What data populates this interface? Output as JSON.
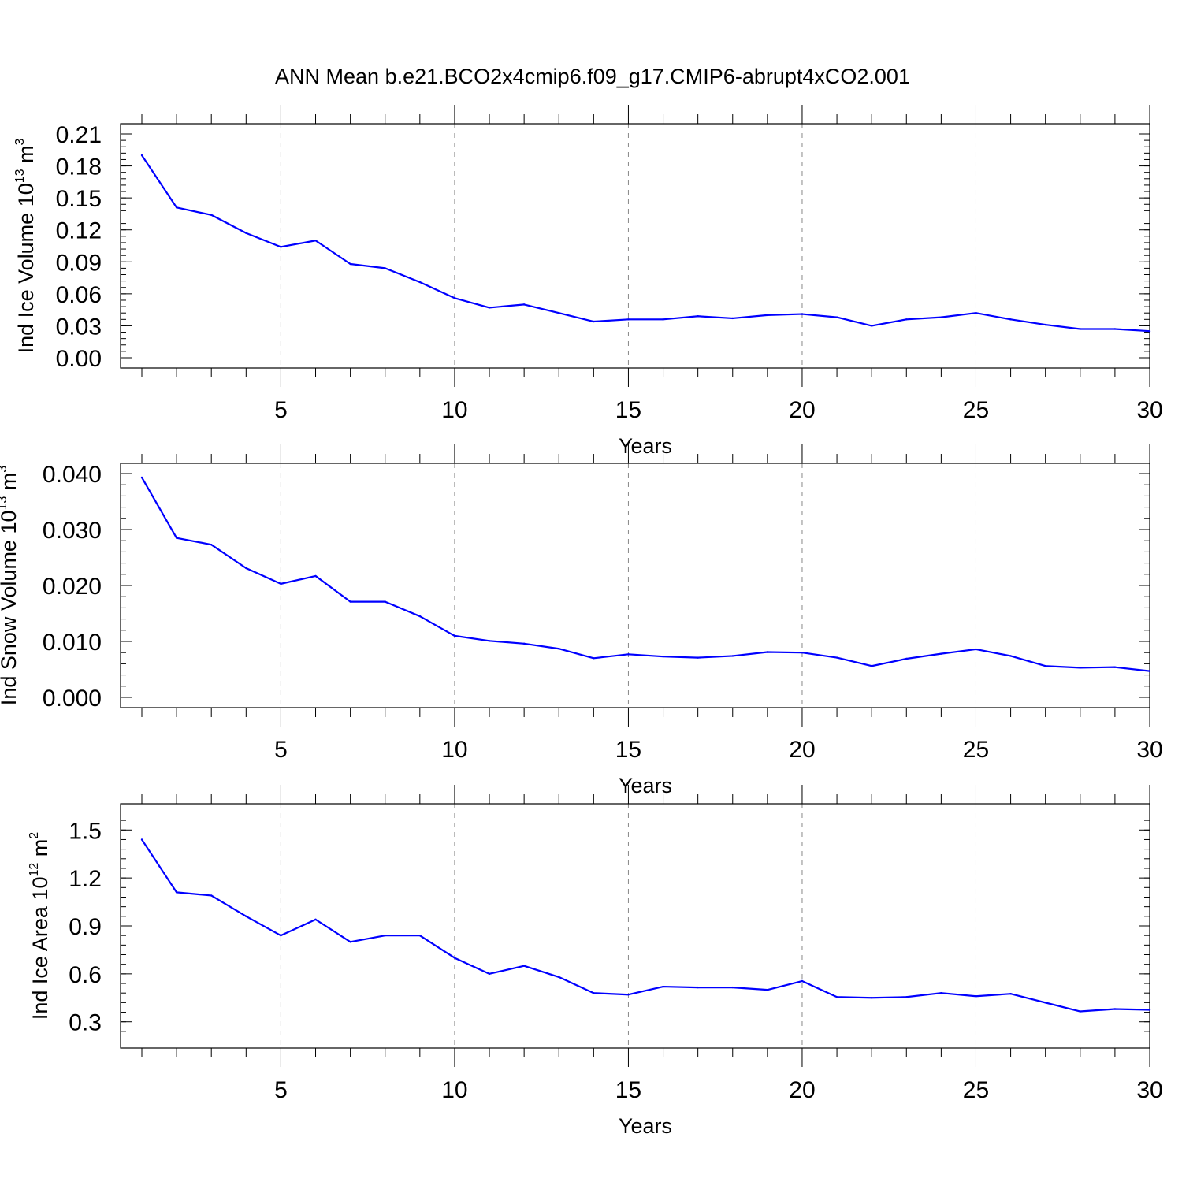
{
  "figure": {
    "title": "ANN Mean b.e21.BCO2x4cmip6.f09_g17.CMIP6-abrupt4xCO2.001"
  },
  "colors": {
    "series": "#0000ff",
    "frame": "#000000",
    "grid": "#888888"
  },
  "chart_data": [
    {
      "type": "line",
      "title": "",
      "xlabel": "Years",
      "ylabel": "Ind Ice Volume 10",
      "ylabel_exp": "13",
      "ylabel_unit": "m",
      "ylabel_unit_exp": "3",
      "xlim": [
        1,
        30
      ],
      "ylim": [
        0,
        0.21
      ],
      "x_ticks": [
        "5",
        "10",
        "15",
        "20",
        "25",
        "30"
      ],
      "y_ticks": [
        "0.00",
        "0.03",
        "0.06",
        "0.09",
        "0.12",
        "0.15",
        "0.18",
        "0.21"
      ],
      "grid": "vertical dashed at major x ticks",
      "x": [
        1,
        2,
        3,
        4,
        5,
        6,
        7,
        8,
        9,
        10,
        11,
        12,
        13,
        14,
        15,
        16,
        17,
        18,
        19,
        20,
        21,
        22,
        23,
        24,
        25,
        26,
        27,
        28,
        29,
        30
      ],
      "series": [
        {
          "values": [
            0.19,
            0.141,
            0.134,
            0.117,
            0.104,
            0.11,
            0.088,
            0.084,
            0.071,
            0.056,
            0.047,
            0.05,
            0.042,
            0.034,
            0.036,
            0.036,
            0.039,
            0.037,
            0.04,
            0.041,
            0.038,
            0.03,
            0.036,
            0.038,
            0.042,
            0.036,
            0.031,
            0.027,
            0.027,
            0.025
          ]
        }
      ]
    },
    {
      "type": "line",
      "title": "",
      "xlabel": "Years",
      "ylabel": "Ind Snow Volume 10",
      "ylabel_exp": "13",
      "ylabel_unit": "m",
      "ylabel_unit_exp": "3",
      "xlim": [
        1,
        30
      ],
      "ylim": [
        0,
        0.04
      ],
      "x_ticks": [
        "5",
        "10",
        "15",
        "20",
        "25",
        "30"
      ],
      "y_ticks": [
        "0.000",
        "0.010",
        "0.020",
        "0.030",
        "0.040"
      ],
      "grid": "vertical dashed at major x ticks",
      "x": [
        1,
        2,
        3,
        4,
        5,
        6,
        7,
        8,
        9,
        10,
        11,
        12,
        13,
        14,
        15,
        16,
        17,
        18,
        19,
        20,
        21,
        22,
        23,
        24,
        25,
        26,
        27,
        28,
        29,
        30
      ],
      "series": [
        {
          "values": [
            0.0393,
            0.0285,
            0.0273,
            0.0231,
            0.0203,
            0.0217,
            0.0171,
            0.0171,
            0.0145,
            0.011,
            0.0101,
            0.0096,
            0.0087,
            0.007,
            0.0077,
            0.0073,
            0.0071,
            0.0074,
            0.0081,
            0.008,
            0.0071,
            0.0056,
            0.0069,
            0.0078,
            0.0086,
            0.0074,
            0.0056,
            0.0053,
            0.0054,
            0.0047
          ]
        }
      ]
    },
    {
      "type": "line",
      "title": "",
      "xlabel": "Years",
      "ylabel": "Ind Ice Area 10",
      "ylabel_exp": "12",
      "ylabel_unit": "m",
      "ylabel_unit_exp": "2",
      "xlim": [
        1,
        30
      ],
      "ylim": [
        0.2,
        1.6
      ],
      "x_ticks": [
        "5",
        "10",
        "15",
        "20",
        "25",
        "30"
      ],
      "y_ticks": [
        "0.3",
        "0.6",
        "0.9",
        "1.2",
        "1.5"
      ],
      "grid": "vertical dashed at major x ticks",
      "x": [
        1,
        2,
        3,
        4,
        5,
        6,
        7,
        8,
        9,
        10,
        11,
        12,
        13,
        14,
        15,
        16,
        17,
        18,
        19,
        20,
        21,
        22,
        23,
        24,
        25,
        26,
        27,
        28,
        29,
        30
      ],
      "series": [
        {
          "values": [
            1.44,
            1.11,
            1.09,
            0.96,
            0.84,
            0.94,
            0.8,
            0.84,
            0.84,
            0.7,
            0.6,
            0.65,
            0.58,
            0.48,
            0.47,
            0.52,
            0.515,
            0.515,
            0.5,
            0.555,
            0.455,
            0.45,
            0.455,
            0.48,
            0.46,
            0.475,
            0.42,
            0.365,
            0.38,
            0.375
          ]
        }
      ]
    }
  ]
}
